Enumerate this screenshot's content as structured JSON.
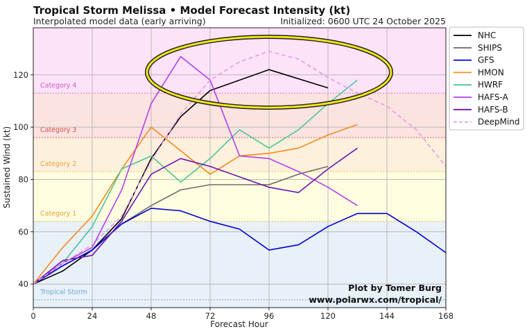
{
  "header": {
    "title": "Tropical Storm Melissa • Model Forecast Intensity (kt)",
    "subtitle": "Interpolated model data (early arriving)",
    "initialized": "Initialized: 0600 UTC 24 October 2025"
  },
  "credit": {
    "line1": "Plot by Tomer Burg",
    "line2": "www.polarwx.com/tropical/"
  },
  "chart_data": {
    "type": "line",
    "xlabel": "Forecast Hour",
    "ylabel": "Sustained Wind (kt)",
    "xlim": [
      0,
      168
    ],
    "ylim": [
      31,
      138
    ],
    "xticks": [
      0,
      24,
      48,
      72,
      96,
      120,
      144,
      168
    ],
    "yticks": [
      40,
      60,
      80,
      100,
      120
    ],
    "grid": true,
    "legend_position": "outside-right-top",
    "bands": [
      {
        "label": "Tropical Storm",
        "from": 31,
        "to": 64,
        "threshold": 34,
        "fill": "#e8f0f8",
        "line": "#6fa8dc",
        "text": "#6fa8dc"
      },
      {
        "label": "Category 1",
        "from": 64,
        "to": 83,
        "threshold": 64,
        "fill": "#fefde0",
        "line": "#e6b84a",
        "text": "#e6a23c"
      },
      {
        "label": "Category 2",
        "from": 83,
        "to": 96,
        "threshold": 83,
        "fill": "#fdf0dc",
        "line": "#e8c24a",
        "text": "#e6a23c"
      },
      {
        "label": "Category 3",
        "from": 96,
        "to": 113,
        "threshold": 96,
        "fill": "#fbe3e0",
        "line": "#e05a5a",
        "text": "#d84b4b"
      },
      {
        "label": "Category 4",
        "from": 113,
        "to": 138,
        "threshold": 113,
        "fill": "#fde3f8",
        "line": "#d56ad5",
        "text": "#c85ac8"
      }
    ],
    "series": [
      {
        "name": "NHC",
        "color": "#000000",
        "dashed": false,
        "x": [
          0,
          12,
          24,
          36,
          48,
          60,
          72,
          96,
          120
        ],
        "y": [
          40,
          45,
          53,
          65,
          88,
          104,
          114,
          122,
          115
        ]
      },
      {
        "name": "SHIPS",
        "color": "#6b6b6b",
        "dashed": false,
        "x": [
          0,
          12,
          24,
          36,
          48,
          60,
          72,
          84,
          96,
          108,
          120
        ],
        "y": [
          40,
          47,
          53,
          63,
          70,
          76,
          78,
          78,
          78,
          82,
          85
        ]
      },
      {
        "name": "GFS",
        "color": "#0000cc",
        "dashed": false,
        "x": [
          0,
          12,
          24,
          36,
          48,
          60,
          72,
          84,
          96,
          108,
          120,
          132,
          144,
          156,
          168
        ],
        "y": [
          40,
          47,
          53,
          63,
          69,
          68,
          64,
          61,
          53,
          55,
          62,
          67,
          67,
          60,
          52
        ]
      },
      {
        "name": "HMON",
        "color": "#f28a1c",
        "dashed": false,
        "x": [
          0,
          12,
          24,
          36,
          48,
          60,
          72,
          84,
          96,
          108,
          120,
          132
        ],
        "y": [
          40,
          54,
          66,
          84,
          100,
          91,
          82,
          89,
          90,
          92,
          97,
          101
        ]
      },
      {
        "name": "HWRF",
        "color": "#4cc49a",
        "dashed": false,
        "x": [
          0,
          12,
          24,
          36,
          48,
          60,
          72,
          84,
          96,
          108,
          120,
          132
        ],
        "y": [
          40,
          48,
          62,
          84,
          89,
          79,
          88,
          99,
          92,
          99,
          109,
          118
        ]
      },
      {
        "name": "HAFS-A",
        "color": "#b23ee8",
        "dashed": false,
        "x": [
          0,
          12,
          24,
          36,
          48,
          60,
          72,
          84,
          96,
          108,
          120,
          132
        ],
        "y": [
          40,
          48,
          54,
          76,
          109,
          127,
          118,
          89,
          88,
          83,
          77,
          70
        ]
      },
      {
        "name": "HAFS-B",
        "color": "#6a14b0",
        "dashed": false,
        "x": [
          0,
          12,
          24,
          36,
          48,
          60,
          72,
          84,
          96,
          108,
          120,
          132
        ],
        "y": [
          40,
          49,
          51,
          64,
          82,
          88,
          85,
          81,
          77,
          75,
          84,
          92
        ]
      },
      {
        "name": "DeepMind",
        "color": "#e69ae6",
        "dashed": true,
        "x": [
          0,
          12,
          24,
          36,
          48,
          60,
          72,
          84,
          96,
          108,
          120,
          132,
          144,
          156,
          168
        ],
        "y": [
          40,
          48,
          55,
          66,
          87,
          105,
          118,
          125,
          129,
          126,
          119,
          113,
          108,
          99,
          85
        ]
      }
    ]
  }
}
